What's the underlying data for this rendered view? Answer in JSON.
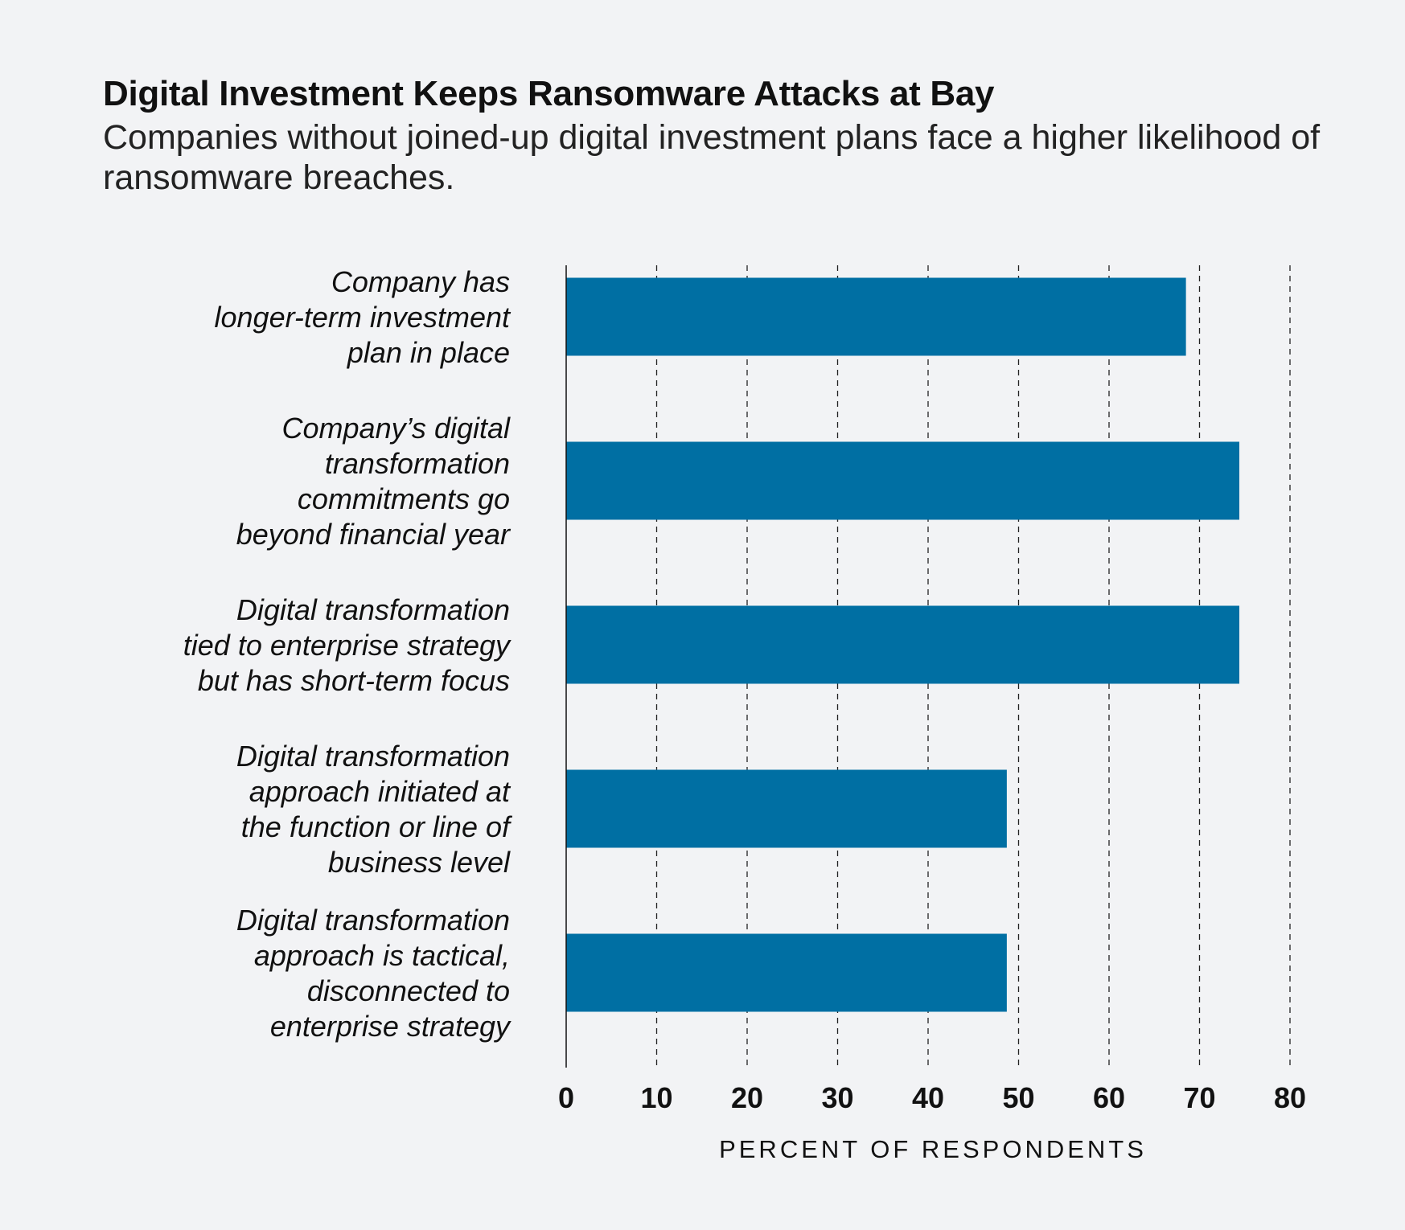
{
  "chart_data": {
    "type": "bar",
    "orientation": "horizontal",
    "title": "Digital Investment Keeps Ransomware Attacks at Bay",
    "subtitle": "Companies without joined-up digital investment plans face a higher likelihood of ransomware breaches.",
    "categories": [
      [
        "Company has",
        "longer-term investment",
        "plan in place"
      ],
      [
        "Company’s digital",
        "transformation",
        "commitments go",
        "beyond financial year"
      ],
      [
        "Digital transformation",
        "tied to enterprise strategy",
        "but has short-term focus"
      ],
      [
        "Digital transformation",
        "approach initiated at",
        "the function or line of",
        "business level"
      ],
      [
        "Digital transformation",
        "approach is tactical,",
        "disconnected to",
        "enterprise strategy"
      ]
    ],
    "values": [
      68.5,
      74.4,
      74.4,
      48.7,
      48.7
    ],
    "xlabel": "PERCENT OF RESPONDENTS",
    "ylabel": "",
    "xlim": [
      0,
      80
    ],
    "xticks": [
      0,
      10,
      20,
      30,
      40,
      50,
      60,
      70,
      80
    ],
    "grid": "vertical-dashed",
    "legend": "none",
    "bar_color": "#006fa3"
  }
}
